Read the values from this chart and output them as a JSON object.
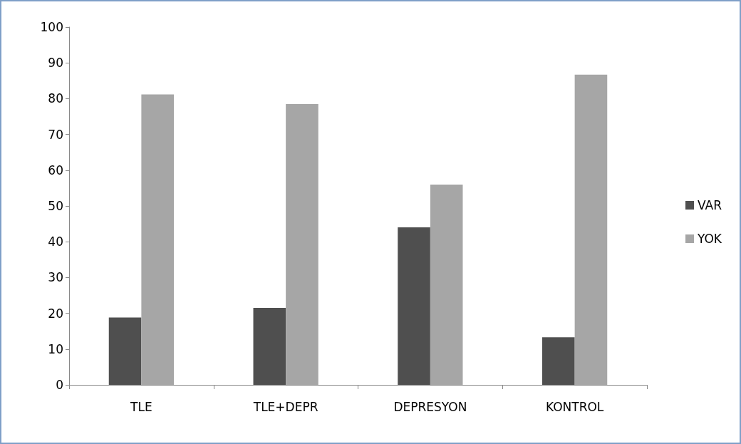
{
  "chart_data": {
    "type": "bar",
    "categories": [
      "TLE",
      "TLE+DEPR",
      "DEPRESYON",
      "KONTROL"
    ],
    "series": [
      {
        "name": "VAR",
        "color": "#4f4f4f",
        "values": [
          18.8,
          21.5,
          44,
          13.3
        ]
      },
      {
        "name": "YOK",
        "color": "#a6a6a6",
        "values": [
          81.2,
          78.5,
          56,
          86.7
        ]
      }
    ],
    "ylim": [
      0,
      100
    ],
    "yticks": [
      0,
      10,
      20,
      30,
      40,
      50,
      60,
      70,
      80,
      90,
      100
    ],
    "grid": false,
    "legend": "right"
  }
}
